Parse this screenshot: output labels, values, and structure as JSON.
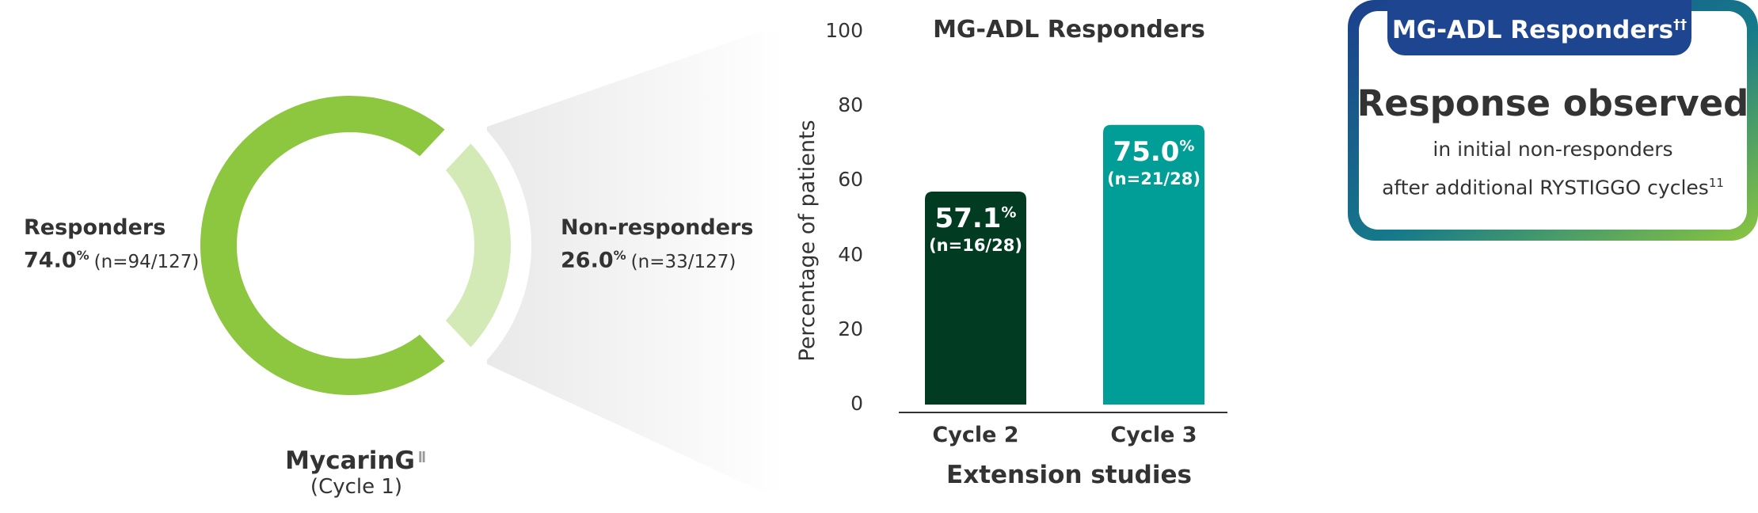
{
  "chart_data": [
    {
      "type": "pie",
      "style": "donut",
      "title": "",
      "study": {
        "name": "MycarinG",
        "marker": "ǁ",
        "cycle": "(Cycle 1)"
      },
      "slices": [
        {
          "label": "Responders",
          "value": 74.0,
          "value_text": "74.0",
          "unit": "%",
          "n_text": "(n=94/127)",
          "color": "#8dc63f"
        },
        {
          "label": "Non-responders",
          "value": 26.0,
          "value_text": "26.0",
          "unit": "%",
          "n_text": "(n=33/127)",
          "color": "#d3eab7"
        }
      ]
    },
    {
      "type": "bar",
      "title": "MG-ADL Responders",
      "xlabel": "Extension studies",
      "ylabel": "Percentage of patients",
      "ylim": [
        0,
        100
      ],
      "yticks": [
        "0",
        "20",
        "40",
        "60",
        "80",
        "100"
      ],
      "grid": false,
      "categories": [
        "Cycle 2",
        "Cycle 3"
      ],
      "values": [
        57.1,
        75.0
      ],
      "value_labels": [
        "57.1",
        "75.0"
      ],
      "unit": "%",
      "n_labels": [
        "(n=16/28)",
        "(n=21/28)"
      ],
      "colors": [
        "#003b22",
        "#009e96"
      ]
    }
  ],
  "callout": {
    "tab": "MG-ADL Responders",
    "tab_marker": "††",
    "headline": "Response observed",
    "line1": "in initial non-responders",
    "line2": "after additional RYSTIGGO cycles",
    "line2_ref": "11"
  }
}
